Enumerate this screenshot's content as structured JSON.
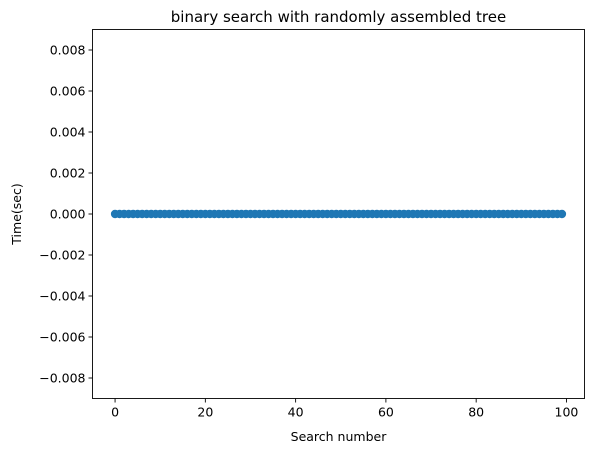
{
  "chart_data": {
    "type": "scatter",
    "title": "binary search with randomly assembled tree",
    "xlabel": "Search number",
    "ylabel": "Time(sec)",
    "xlim": [
      -5,
      104
    ],
    "ylim": [
      -0.009,
      0.009
    ],
    "xticks": [
      0,
      20,
      40,
      60,
      80,
      100
    ],
    "xtick_labels": [
      "0",
      "20",
      "40",
      "60",
      "80",
      "100"
    ],
    "yticks": [
      -0.008,
      -0.006,
      -0.004,
      -0.002,
      0.0,
      0.002,
      0.004,
      0.006,
      0.008
    ],
    "ytick_labels": [
      "−0.008",
      "−0.006",
      "−0.004",
      "−0.002",
      "0.000",
      "0.002",
      "0.004",
      "0.006",
      "0.008"
    ],
    "grid": false,
    "marker_color": "#1f77b4",
    "series": [
      {
        "x": [
          0,
          1,
          2,
          3,
          4,
          5,
          6,
          7,
          8,
          9,
          10,
          11,
          12,
          13,
          14,
          15,
          16,
          17,
          18,
          19,
          20,
          21,
          22,
          23,
          24,
          25,
          26,
          27,
          28,
          29,
          30,
          31,
          32,
          33,
          34,
          35,
          36,
          37,
          38,
          39,
          40,
          41,
          42,
          43,
          44,
          45,
          46,
          47,
          48,
          49,
          50,
          51,
          52,
          53,
          54,
          55,
          56,
          57,
          58,
          59,
          60,
          61,
          62,
          63,
          64,
          65,
          66,
          67,
          68,
          69,
          70,
          71,
          72,
          73,
          74,
          75,
          76,
          77,
          78,
          79,
          80,
          81,
          82,
          83,
          84,
          85,
          86,
          87,
          88,
          89,
          90,
          91,
          92,
          93,
          94,
          95,
          96,
          97,
          98,
          99
        ],
        "y": [
          0,
          0,
          0,
          0,
          0,
          0,
          0,
          0,
          0,
          0,
          0,
          0,
          0,
          0,
          0,
          0,
          0,
          0,
          0,
          0,
          0,
          0,
          0,
          0,
          0,
          0,
          0,
          0,
          0,
          0,
          0,
          0,
          0,
          0,
          0,
          0,
          0,
          0,
          0,
          0,
          0,
          0,
          0,
          0,
          0,
          0,
          0,
          0,
          0,
          0,
          0,
          0,
          0,
          0,
          0,
          0,
          0,
          0,
          0,
          0,
          0,
          0,
          0,
          0,
          0,
          0,
          0,
          0,
          0,
          0,
          0,
          0,
          0,
          0,
          0,
          0,
          0,
          0,
          0,
          0,
          0,
          0,
          0,
          0,
          0,
          0,
          0,
          0,
          0,
          0,
          0,
          0,
          0,
          0,
          0,
          0,
          0,
          0,
          0,
          0
        ]
      }
    ]
  }
}
